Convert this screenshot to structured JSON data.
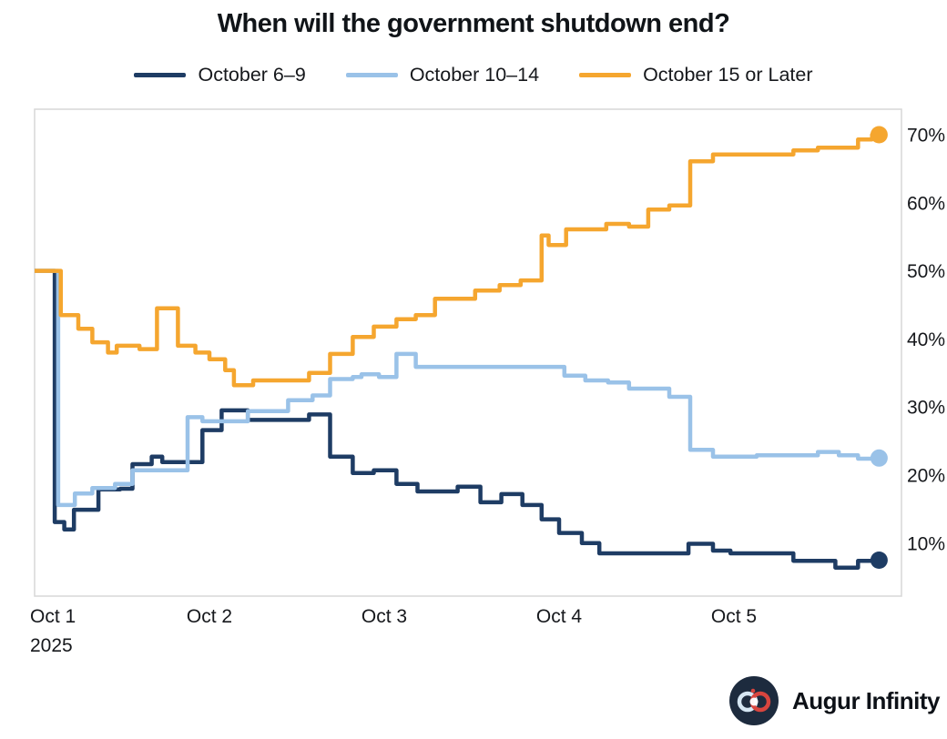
{
  "title": "When will the government shutdown end?",
  "legend": [
    {
      "label": "October 6–9",
      "color": "#1e3c64"
    },
    {
      "label": "October 10–14",
      "color": "#9ac2e8"
    },
    {
      "label": "October 15 or Later",
      "color": "#f5a62f"
    }
  ],
  "footer": {
    "brand": "Augur Infinity"
  },
  "colors": {
    "navy": "#1e3c64",
    "light_blue": "#9ac2e8",
    "orange": "#f5a62f",
    "title_text": "#101418",
    "axis_text": "#16181c",
    "plot_border": "#d7d7d7",
    "background": "#ffffff",
    "logo_bg": "#1d2b3e",
    "logo_red": "#d8453e",
    "logo_light_loop": "#d5e6f3"
  },
  "chart_data": {
    "type": "line",
    "step": true,
    "title": "When will the government shutdown end?",
    "grid": false,
    "legend_position": "top",
    "x_axis": {
      "tick_labels": [
        "Oct 1",
        "Oct 2",
        "Oct 3",
        "Oct 4",
        "Oct 5"
      ],
      "tick_days": [
        1,
        2,
        3,
        4,
        5
      ],
      "year_label": "2025",
      "range_days": [
        1.0,
        5.96
      ],
      "end_day": 5.83
    },
    "y_axis": {
      "side": "right",
      "ticks": [
        10,
        20,
        30,
        40,
        50,
        60,
        70
      ],
      "tick_labels": [
        "10%",
        "20%",
        "30%",
        "40%",
        "50%",
        "60%",
        "70%"
      ],
      "range": [
        2,
        74
      ]
    },
    "series": [
      {
        "name": "October 6–9",
        "color": "#1e3c64",
        "end_value": 7.5,
        "points": [
          [
            1.0,
            50
          ],
          [
            1.115,
            13.1
          ],
          [
            1.17,
            12.0
          ],
          [
            1.225,
            14.9
          ],
          [
            1.365,
            17.9
          ],
          [
            1.49,
            18.0
          ],
          [
            1.56,
            21.6
          ],
          [
            1.67,
            22.7
          ],
          [
            1.73,
            21.9
          ],
          [
            1.96,
            26.6
          ],
          [
            2.07,
            29.5
          ],
          [
            2.22,
            28.1
          ],
          [
            2.57,
            28.9
          ],
          [
            2.69,
            22.7
          ],
          [
            2.82,
            20.3
          ],
          [
            2.94,
            20.7
          ],
          [
            3.07,
            18.7
          ],
          [
            3.19,
            17.6
          ],
          [
            3.42,
            18.3
          ],
          [
            3.55,
            16.0
          ],
          [
            3.67,
            17.2
          ],
          [
            3.79,
            15.6
          ],
          [
            3.9,
            13.5
          ],
          [
            4.0,
            11.5
          ],
          [
            4.13,
            10.0
          ],
          [
            4.23,
            8.5
          ],
          [
            4.74,
            9.9
          ],
          [
            4.88,
            8.9
          ],
          [
            4.98,
            8.5
          ],
          [
            5.34,
            7.4
          ],
          [
            5.58,
            6.4
          ],
          [
            5.71,
            7.4
          ],
          [
            5.79,
            7.5
          ]
        ]
      },
      {
        "name": "October 10–14",
        "color": "#9ac2e8",
        "end_value": 22.5,
        "points": [
          [
            1.0,
            50
          ],
          [
            1.135,
            15.6
          ],
          [
            1.23,
            17.3
          ],
          [
            1.33,
            18.1
          ],
          [
            1.46,
            18.7
          ],
          [
            1.56,
            20.7
          ],
          [
            1.875,
            28.5
          ],
          [
            1.96,
            27.9
          ],
          [
            2.22,
            29.4
          ],
          [
            2.45,
            31.0
          ],
          [
            2.59,
            31.7
          ],
          [
            2.69,
            34.1
          ],
          [
            2.82,
            34.4
          ],
          [
            2.87,
            34.8
          ],
          [
            2.97,
            34.4
          ],
          [
            3.07,
            37.8
          ],
          [
            3.18,
            35.9
          ],
          [
            4.03,
            34.6
          ],
          [
            4.15,
            33.9
          ],
          [
            4.28,
            33.6
          ],
          [
            4.4,
            32.7
          ],
          [
            4.63,
            31.5
          ],
          [
            4.75,
            23.7
          ],
          [
            4.88,
            22.7
          ],
          [
            5.13,
            22.9
          ],
          [
            5.48,
            23.4
          ],
          [
            5.6,
            22.9
          ],
          [
            5.71,
            22.4
          ],
          [
            5.79,
            22.5
          ]
        ]
      },
      {
        "name": "October 15 or Later",
        "color": "#f5a62f",
        "end_value": 70,
        "points": [
          [
            1.0,
            50
          ],
          [
            1.15,
            43.5
          ],
          [
            1.25,
            41.5
          ],
          [
            1.33,
            39.5
          ],
          [
            1.42,
            38.0
          ],
          [
            1.47,
            39.0
          ],
          [
            1.6,
            38.5
          ],
          [
            1.7,
            44.5
          ],
          [
            1.82,
            39.0
          ],
          [
            1.92,
            38.0
          ],
          [
            2.0,
            37.0
          ],
          [
            2.09,
            35.4
          ],
          [
            2.14,
            33.2
          ],
          [
            2.25,
            33.9
          ],
          [
            2.57,
            35.0
          ],
          [
            2.69,
            37.8
          ],
          [
            2.82,
            40.3
          ],
          [
            2.94,
            41.8
          ],
          [
            3.07,
            42.9
          ],
          [
            3.18,
            43.5
          ],
          [
            3.29,
            45.9
          ],
          [
            3.52,
            47.1
          ],
          [
            3.66,
            47.9
          ],
          [
            3.78,
            48.6
          ],
          [
            3.9,
            55.2
          ],
          [
            3.94,
            53.8
          ],
          [
            4.04,
            56.1
          ],
          [
            4.27,
            56.9
          ],
          [
            4.4,
            56.5
          ],
          [
            4.51,
            59.0
          ],
          [
            4.63,
            59.6
          ],
          [
            4.75,
            66.1
          ],
          [
            4.88,
            67.1
          ],
          [
            5.34,
            67.7
          ],
          [
            5.48,
            68.1
          ],
          [
            5.71,
            69.3
          ],
          [
            5.79,
            70.0
          ]
        ]
      }
    ]
  }
}
